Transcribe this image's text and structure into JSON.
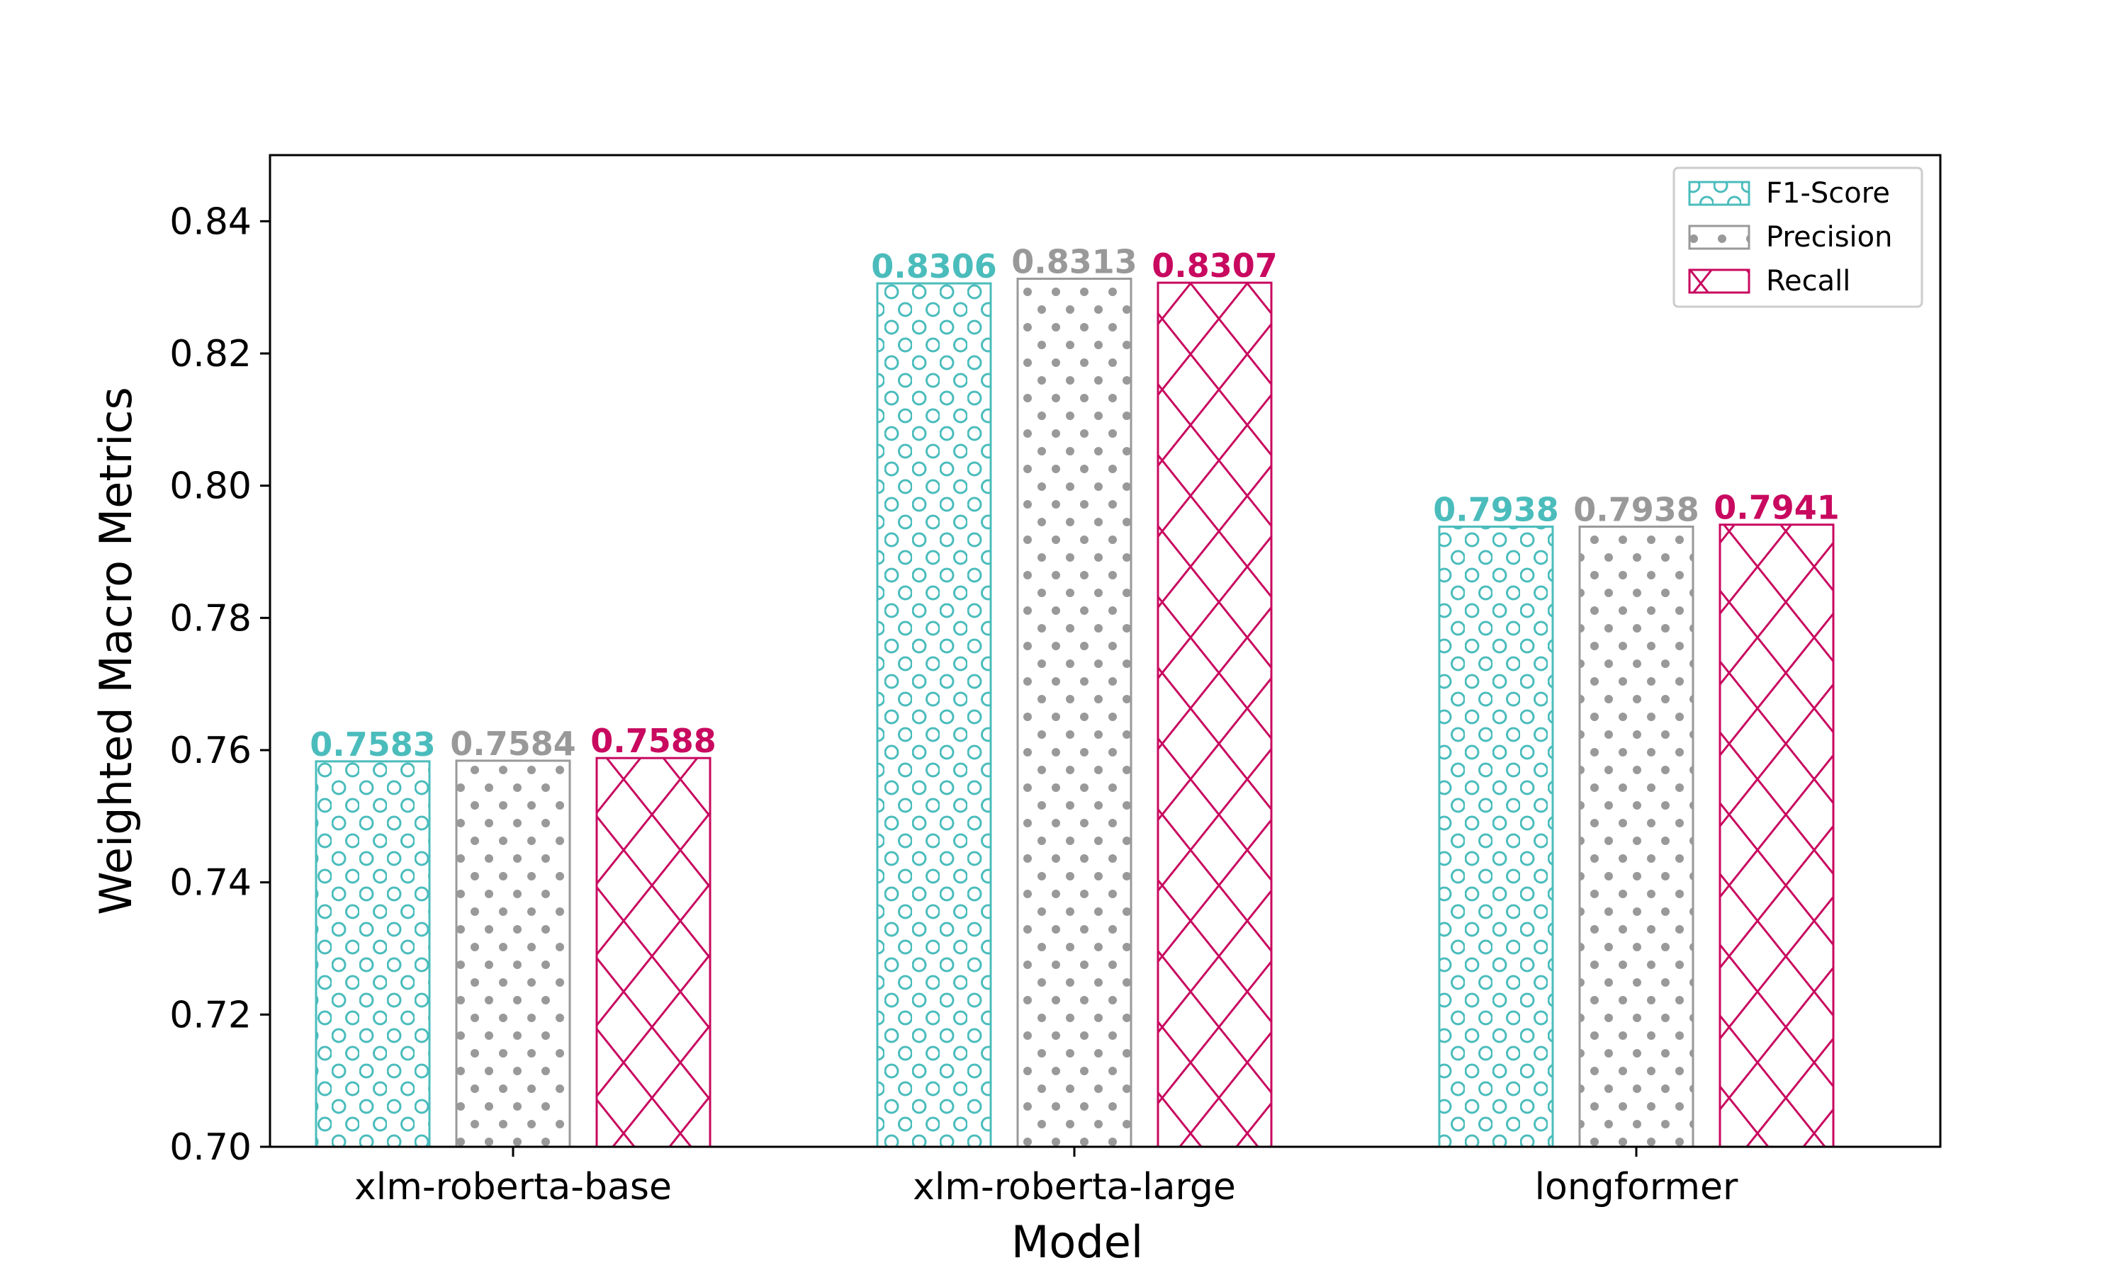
{
  "chart_data": {
    "type": "bar",
    "categories": [
      "xlm-roberta-base",
      "xlm-roberta-large",
      "longformer"
    ],
    "series": [
      {
        "name": "F1-Score",
        "values": [
          0.7583,
          0.8306,
          0.7938
        ],
        "labels": [
          "0.7583",
          "0.8306",
          "0.7938"
        ],
        "color": "#4bbcbc",
        "hatch": "circles"
      },
      {
        "name": "Precision",
        "values": [
          0.7584,
          0.8313,
          0.7938
        ],
        "labels": [
          "0.7584",
          "0.8313",
          "0.7938"
        ],
        "color": "#999999",
        "hatch": "dots"
      },
      {
        "name": "Recall",
        "values": [
          0.7588,
          0.8307,
          0.7941
        ],
        "labels": [
          "0.7588",
          "0.8307",
          "0.7941"
        ],
        "color": "#c8095f",
        "hatch": "crosshatch"
      }
    ],
    "title": "",
    "xlabel": "Model",
    "ylabel": "Weighted Macro Metrics",
    "ylim": [
      0.7,
      0.85
    ],
    "yticks": [
      "0.70",
      "0.72",
      "0.74",
      "0.76",
      "0.78",
      "0.80",
      "0.82",
      "0.84"
    ],
    "grid": false,
    "legend_position": "top-right"
  }
}
